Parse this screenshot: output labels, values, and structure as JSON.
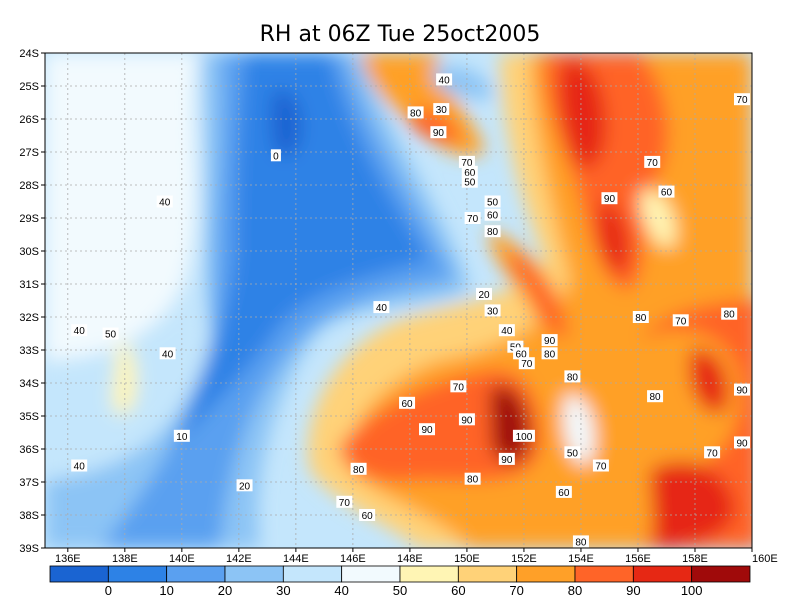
{
  "chart_data": {
    "type": "heatmap",
    "title": "RH at 06Z Tue 25oct2005",
    "x_ticks": [
      "136E",
      "138E",
      "140E",
      "142E",
      "144E",
      "146E",
      "148E",
      "150E",
      "152E",
      "154E",
      "156E",
      "158E",
      "160E"
    ],
    "y_ticks": [
      "24S",
      "25S",
      "26S",
      "27S",
      "28S",
      "29S",
      "30S",
      "31S",
      "32S",
      "33S",
      "34S",
      "35S",
      "36S",
      "37S",
      "38S",
      "39S"
    ],
    "xlim": [
      135.2,
      160.0
    ],
    "ylim": [
      -39.0,
      -24.0
    ],
    "grid": true,
    "colorbar": {
      "levels": [
        "0",
        "10",
        "20",
        "30",
        "40",
        "50",
        "60",
        "70",
        "80",
        "90",
        "100"
      ],
      "colors": [
        "#1a64d2",
        "#2d82e6",
        "#5aa0f0",
        "#8cc4f5",
        "#c4e6fc",
        "#f2fafe",
        "#fff5b4",
        "#ffd278",
        "#ffa028",
        "#ff6428",
        "#e62814",
        "#a00a0a"
      ]
    },
    "contour_labels": [
      {
        "text": "0",
        "lon": 143.3,
        "lat": -27.1
      },
      {
        "text": "40",
        "lon": 139.4,
        "lat": -28.5
      },
      {
        "text": "40",
        "lon": 136.4,
        "lat": -32.4
      },
      {
        "text": "50",
        "lon": 137.5,
        "lat": -32.5
      },
      {
        "text": "40",
        "lon": 139.5,
        "lat": -33.1
      },
      {
        "text": "40",
        "lon": 136.4,
        "lat": -36.5
      },
      {
        "text": "10",
        "lon": 140.0,
        "lat": -35.6
      },
      {
        "text": "20",
        "lon": 142.2,
        "lat": -37.1
      },
      {
        "text": "40",
        "lon": 147.0,
        "lat": -31.7
      },
      {
        "text": "40",
        "lon": 149.2,
        "lat": -24.8
      },
      {
        "text": "30",
        "lon": 149.1,
        "lat": -25.7
      },
      {
        "text": "80",
        "lon": 148.2,
        "lat": -25.8
      },
      {
        "text": "90",
        "lon": 149.0,
        "lat": -26.4
      },
      {
        "text": "70",
        "lon": 150.0,
        "lat": -27.3
      },
      {
        "text": "60",
        "lon": 150.1,
        "lat": -27.6
      },
      {
        "text": "50",
        "lon": 150.1,
        "lat": -27.9
      },
      {
        "text": "50",
        "lon": 150.9,
        "lat": -28.5
      },
      {
        "text": "60",
        "lon": 150.9,
        "lat": -28.9
      },
      {
        "text": "70",
        "lon": 150.2,
        "lat": -29.0
      },
      {
        "text": "80",
        "lon": 150.9,
        "lat": -29.4
      },
      {
        "text": "20",
        "lon": 150.6,
        "lat": -31.3
      },
      {
        "text": "30",
        "lon": 150.9,
        "lat": -31.8
      },
      {
        "text": "40",
        "lon": 151.4,
        "lat": -32.4
      },
      {
        "text": "50",
        "lon": 151.7,
        "lat": -32.9
      },
      {
        "text": "60",
        "lon": 151.9,
        "lat": -33.1
      },
      {
        "text": "70",
        "lon": 152.1,
        "lat": -33.4
      },
      {
        "text": "90",
        "lon": 152.9,
        "lat": -32.7
      },
      {
        "text": "80",
        "lon": 152.9,
        "lat": -33.1
      },
      {
        "text": "70",
        "lon": 149.7,
        "lat": -34.1
      },
      {
        "text": "60",
        "lon": 147.9,
        "lat": -34.6
      },
      {
        "text": "90",
        "lon": 148.6,
        "lat": -35.4
      },
      {
        "text": "80",
        "lon": 146.2,
        "lat": -36.6
      },
      {
        "text": "70",
        "lon": 145.7,
        "lat": -37.6
      },
      {
        "text": "60",
        "lon": 146.5,
        "lat": -38.0
      },
      {
        "text": "90",
        "lon": 150.0,
        "lat": -35.1
      },
      {
        "text": "100",
        "lon": 152.0,
        "lat": -35.6
      },
      {
        "text": "90",
        "lon": 151.4,
        "lat": -36.3
      },
      {
        "text": "80",
        "lon": 150.2,
        "lat": -36.9
      },
      {
        "text": "80",
        "lon": 153.7,
        "lat": -33.8
      },
      {
        "text": "50",
        "lon": 153.7,
        "lat": -36.1
      },
      {
        "text": "60",
        "lon": 153.4,
        "lat": -37.3
      },
      {
        "text": "70",
        "lon": 154.7,
        "lat": -36.5
      },
      {
        "text": "80",
        "lon": 154.0,
        "lat": -38.8
      },
      {
        "text": "90",
        "lon": 155.0,
        "lat": -28.4
      },
      {
        "text": "60",
        "lon": 157.0,
        "lat": -28.2
      },
      {
        "text": "70",
        "lon": 156.5,
        "lat": -27.3
      },
      {
        "text": "70",
        "lon": 160.0,
        "lat": -25.4
      },
      {
        "text": "80",
        "lon": 156.1,
        "lat": -32.0
      },
      {
        "text": "70",
        "lon": 157.5,
        "lat": -32.1
      },
      {
        "text": "80",
        "lon": 159.2,
        "lat": -31.9
      },
      {
        "text": "80",
        "lon": 156.6,
        "lat": -34.4
      },
      {
        "text": "90",
        "lon": 159.7,
        "lat": -34.2
      },
      {
        "text": "70",
        "lon": 158.6,
        "lat": -36.1
      },
      {
        "text": "90",
        "lon": 160.0,
        "lat": -35.8
      }
    ]
  }
}
